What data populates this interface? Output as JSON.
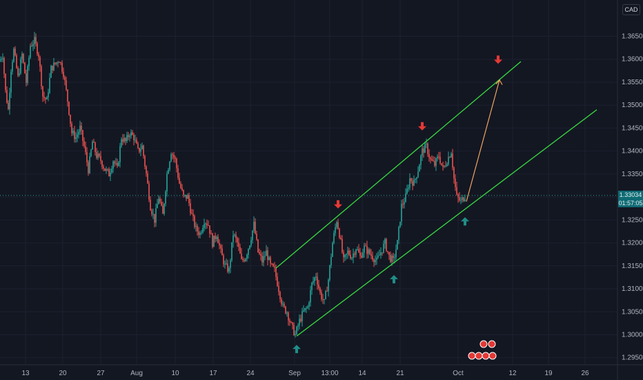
{
  "chart_data": {
    "type": "candlestick",
    "currency": "CAD",
    "y_ticks": [
      1.365,
      1.36,
      1.355,
      1.35,
      1.345,
      1.34,
      1.335,
      1.33,
      1.325,
      1.32,
      1.315,
      1.31,
      1.305,
      1.3,
      1.295
    ],
    "y_tick_labels": [
      "1.36500",
      "1.36000",
      "1.35500",
      "1.35000",
      "1.34500",
      "1.34000",
      "1.33500",
      "1.33000",
      "1.32500",
      "1.32000",
      "1.31500",
      "1.31000",
      "1.30500",
      "1.30000",
      "1.29500"
    ],
    "ylim": [
      1.2927,
      1.3729
    ],
    "x_labels": [
      "13",
      "20",
      "27",
      "Aug",
      "10",
      "17",
      "24",
      "Sep",
      "13:00",
      "14",
      "21",
      "Oct",
      "12",
      "19",
      "26"
    ],
    "current_price": "1.33034",
    "countdown": "01:57:05",
    "price_series": [
      [
        0,
        1.3595
      ],
      [
        6,
        1.361
      ],
      [
        10,
        1.353
      ],
      [
        14,
        1.349
      ],
      [
        18,
        1.358
      ],
      [
        22,
        1.362
      ],
      [
        28,
        1.356
      ],
      [
        34,
        1.361
      ],
      [
        40,
        1.355
      ],
      [
        46,
        1.363
      ],
      [
        52,
        1.364
      ],
      [
        58,
        1.361
      ],
      [
        64,
        1.352
      ],
      [
        70,
        1.351
      ],
      [
        76,
        1.358
      ],
      [
        82,
        1.359
      ],
      [
        88,
        1.36
      ],
      [
        94,
        1.357
      ],
      [
        100,
        1.351
      ],
      [
        106,
        1.344
      ],
      [
        112,
        1.343
      ],
      [
        118,
        1.345
      ],
      [
        124,
        1.341
      ],
      [
        130,
        1.336
      ],
      [
        136,
        1.342
      ],
      [
        142,
        1.339
      ],
      [
        148,
        1.338
      ],
      [
        154,
        1.336
      ],
      [
        160,
        1.335
      ],
      [
        166,
        1.338
      ],
      [
        172,
        1.336
      ],
      [
        178,
        1.343
      ],
      [
        184,
        1.342
      ],
      [
        190,
        1.344
      ],
      [
        196,
        1.343
      ],
      [
        202,
        1.34
      ],
      [
        208,
        1.341
      ],
      [
        214,
        1.335
      ],
      [
        220,
        1.328
      ],
      [
        226,
        1.325
      ],
      [
        232,
        1.33
      ],
      [
        238,
        1.326
      ],
      [
        244,
        1.335
      ],
      [
        250,
        1.34
      ],
      [
        256,
        1.338
      ],
      [
        262,
        1.333
      ],
      [
        268,
        1.33
      ],
      [
        274,
        1.33
      ],
      [
        280,
        1.326
      ],
      [
        286,
        1.323
      ],
      [
        292,
        1.322
      ],
      [
        298,
        1.325
      ],
      [
        304,
        1.324
      ],
      [
        310,
        1.32
      ],
      [
        316,
        1.322
      ],
      [
        322,
        1.318
      ],
      [
        328,
        1.315
      ],
      [
        334,
        1.314
      ],
      [
        340,
        1.322
      ],
      [
        346,
        1.32
      ],
      [
        352,
        1.316
      ],
      [
        358,
        1.317
      ],
      [
        364,
        1.32
      ],
      [
        370,
        1.324
      ],
      [
        376,
        1.318
      ],
      [
        382,
        1.316
      ],
      [
        388,
        1.318
      ],
      [
        394,
        1.315
      ],
      [
        400,
        1.314
      ],
      [
        406,
        1.31
      ],
      [
        412,
        1.306
      ],
      [
        418,
        1.305
      ],
      [
        424,
        1.302
      ],
      [
        430,
        1.3
      ],
      [
        436,
        1.303
      ],
      [
        442,
        1.305
      ],
      [
        448,
        1.306
      ],
      [
        454,
        1.311
      ],
      [
        460,
        1.313
      ],
      [
        466,
        1.309
      ],
      [
        472,
        1.307
      ],
      [
        478,
        1.312
      ],
      [
        484,
        1.32
      ],
      [
        490,
        1.325
      ],
      [
        494,
        1.322
      ],
      [
        500,
        1.316
      ],
      [
        506,
        1.318
      ],
      [
        512,
        1.317
      ],
      [
        518,
        1.319
      ],
      [
        524,
        1.317
      ],
      [
        530,
        1.319
      ],
      [
        536,
        1.318
      ],
      [
        542,
        1.317
      ],
      [
        548,
        1.316
      ],
      [
        554,
        1.318
      ],
      [
        560,
        1.32
      ],
      [
        566,
        1.317
      ],
      [
        572,
        1.316
      ],
      [
        578,
        1.32
      ],
      [
        584,
        1.328
      ],
      [
        590,
        1.33
      ],
      [
        596,
        1.334
      ],
      [
        602,
        1.333
      ],
      [
        608,
        1.336
      ],
      [
        614,
        1.34
      ],
      [
        620,
        1.341
      ],
      [
        626,
        1.338
      ],
      [
        632,
        1.337
      ],
      [
        638,
        1.339
      ],
      [
        644,
        1.336
      ],
      [
        650,
        1.338
      ],
      [
        656,
        1.34
      ],
      [
        660,
        1.334
      ],
      [
        664,
        1.33
      ],
      [
        670,
        1.329
      ],
      [
        676,
        1.3303
      ]
    ],
    "channel_upper": [
      [
        400,
        1.3145
      ],
      [
        755,
        1.3595
      ]
    ],
    "channel_lower": [
      [
        430,
        1.2997
      ],
      [
        865,
        1.349
      ]
    ],
    "projection": [
      [
        676,
        1.329
      ],
      [
        724,
        1.3555
      ]
    ],
    "up_arrows": [
      [
        430,
        1.2978
      ],
      [
        571,
        1.313
      ],
      [
        674,
        1.3256
      ]
    ],
    "down_arrows": [
      [
        490,
        1.3275
      ],
      [
        612,
        1.3445
      ],
      [
        722,
        1.359
      ]
    ],
    "colors": {
      "up": "#26a69a",
      "down": "#ef5350",
      "channel": "#36d13f",
      "projection": "#f4a460",
      "grid": "#1c2030",
      "background": "#131722",
      "marker_up": "#1f8e86",
      "marker_down": "#e53935"
    },
    "grid": true
  }
}
